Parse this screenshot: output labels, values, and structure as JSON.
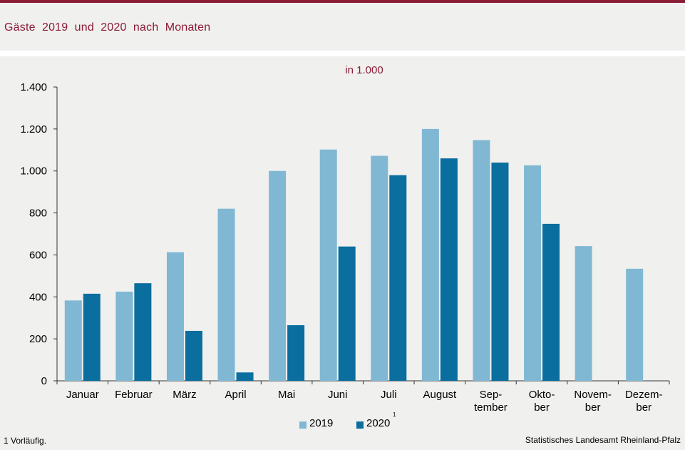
{
  "header": {
    "title": "Gäste  2019  und  2020  nach  Monaten"
  },
  "unit_label": "in 1.000",
  "footnote": "1 Vorläufig.",
  "source": "Statistisches Landesamt Rheinland-Pfalz",
  "legend": {
    "items": [
      {
        "label": "2019",
        "sup": ""
      },
      {
        "label": "2020",
        "sup": "1"
      }
    ]
  },
  "colors": {
    "series_2019": "#80b8d4",
    "series_2020": "#0a6e9e",
    "accent": "#8b1c35"
  },
  "chart_data": {
    "type": "bar",
    "categories": [
      [
        "Januar"
      ],
      [
        "Februar"
      ],
      [
        "März"
      ],
      [
        "April"
      ],
      [
        "Mai"
      ],
      [
        "Juni"
      ],
      [
        "Juli"
      ],
      [
        "August"
      ],
      [
        "Sep-",
        "tember"
      ],
      [
        "Okto-",
        "ber"
      ],
      [
        "Novem-",
        "ber"
      ],
      [
        "Dezem-",
        "ber"
      ]
    ],
    "series": [
      {
        "name": "2019",
        "values": [
          383,
          425,
          613,
          820,
          1000,
          1102,
          1072,
          1200,
          1147,
          1027,
          642,
          534
        ]
      },
      {
        "name": "2020",
        "values": [
          415,
          465,
          238,
          40,
          265,
          640,
          980,
          1060,
          1040,
          748,
          null,
          null
        ]
      }
    ],
    "ylim": [
      0,
      1400
    ],
    "yticks": [
      0,
      200,
      400,
      600,
      800,
      1000,
      1200,
      1400
    ],
    "ytick_labels": [
      "0",
      "200",
      "400",
      "600",
      "800",
      "1.000",
      "1.200",
      "1.400"
    ],
    "grid": false,
    "legend_position": "bottom"
  }
}
